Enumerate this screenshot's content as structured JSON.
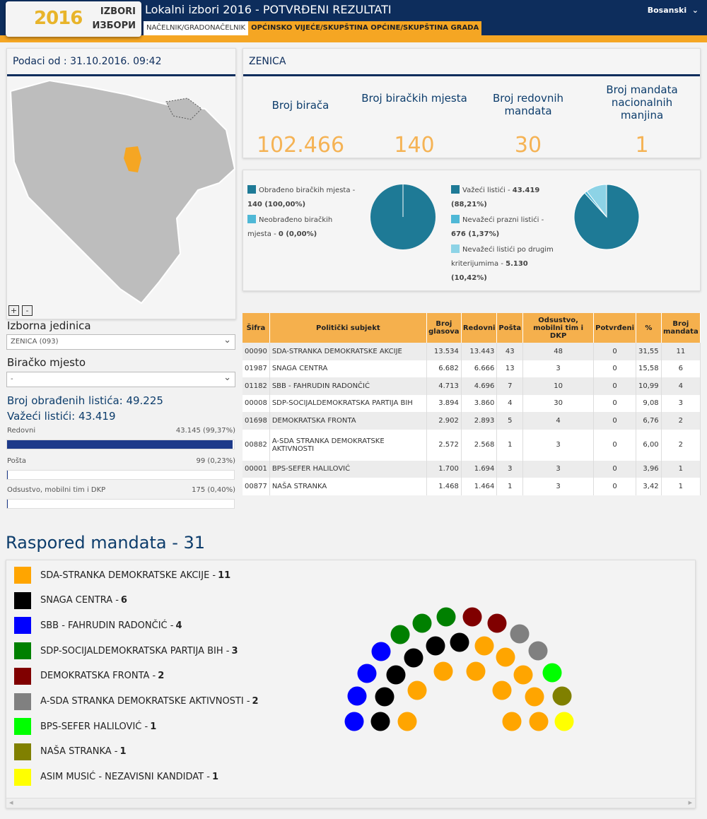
{
  "header": {
    "logo_top": "IZBORI",
    "logo_year": "2016",
    "logo_bottom": "ИЗБОРИ",
    "title": "Lokalni izbori 2016 - POTVRĐENI REZULTATI",
    "language": "Bosanski",
    "tabs": [
      "NAČELNIK/GRADONAČELNIK",
      "OPĆINSKO VIJEĆE/SKUPŠTINA OPĆINE/SKUPŠTINA GRADA"
    ]
  },
  "left": {
    "data_date": "Podaci od : 31.10.2016. 09:42",
    "zoom_in": "+",
    "zoom_out": "-",
    "unit_label": "Izborna jedinica",
    "unit_value": "ZENICA (093)",
    "place_label": "Biračko mjesto",
    "place_value": "-",
    "processed": "Broj obrađenih listića: 49.225",
    "valid": "Važeći listići: 43.419",
    "bars": [
      {
        "label": "Redovni",
        "value": "43.145 (99,37%)",
        "pct": 99.37
      },
      {
        "label": "Pošta",
        "value": "99 (0,23%)",
        "pct": 0.23
      },
      {
        "label": "Odsustvo, mobilni tim i DKP",
        "value": "175 (0,40%)",
        "pct": 0.4
      }
    ]
  },
  "summary": {
    "name": "ZENICA",
    "stats": [
      {
        "label": "Broj birača",
        "value": "102.466"
      },
      {
        "label": "Broj biračkih mjesta",
        "value": "140"
      },
      {
        "label": "Broj redovnih mandata",
        "value": "30"
      },
      {
        "label": "Broj mandata nacionalnih manjina",
        "value": "1"
      }
    ],
    "pie1": {
      "legend": [
        {
          "label": "Obrađeno biračkih mjesta - ",
          "value": "140 (100,00%)",
          "color": "#1e7a96",
          "pct": 100
        },
        {
          "label": "Neobrađeno biračkih mjesta - ",
          "value": "0 (0,00%)",
          "color": "#4fb8d6",
          "pct": 0
        }
      ]
    },
    "pie2": {
      "legend": [
        {
          "label": "Važeći listići - ",
          "value": "43.419 (88,21%)",
          "color": "#1e7a96",
          "pct": 88.21
        },
        {
          "label": "Nevažeći prazni listići - ",
          "value": "676 (1,37%)",
          "color": "#4fb8d6",
          "pct": 1.37
        },
        {
          "label": "Nevažeći listići po drugim kriterijumima - ",
          "value": "5.130 (10,42%)",
          "color": "#8dd3e6",
          "pct": 10.42
        }
      ]
    }
  },
  "table": {
    "headers": [
      "Šifra",
      "Politički subjekt",
      "Broj glasova",
      "Redovni",
      "Pošta",
      "Odsustvo, mobilni tim i DKP",
      "Potvrđeni",
      "%",
      "Broj mandata"
    ],
    "rows": [
      [
        "00090",
        "SDA-STRANKA DEMOKRATSKE AKCIJE",
        "13.534",
        "13.443",
        "43",
        "48",
        "0",
        "31,55",
        "11"
      ],
      [
        "01987",
        "SNAGA CENTRA",
        "6.682",
        "6.666",
        "13",
        "3",
        "0",
        "15,58",
        "6"
      ],
      [
        "01182",
        "SBB - FAHRUDIN RADONČIĆ",
        "4.713",
        "4.696",
        "7",
        "10",
        "0",
        "10,99",
        "4"
      ],
      [
        "00008",
        "SDP-SOCIJALDEMOKRATSKA PARTIJA BIH",
        "3.894",
        "3.860",
        "4",
        "30",
        "0",
        "9,08",
        "3"
      ],
      [
        "01698",
        "DEMOKRATSKA FRONTA",
        "2.902",
        "2.893",
        "5",
        "4",
        "0",
        "6,76",
        "2"
      ],
      [
        "00882",
        "A-SDA STRANKA DEMOKRATSKE AKTIVNOSTI",
        "2.572",
        "2.568",
        "1",
        "3",
        "0",
        "6,00",
        "2"
      ],
      [
        "00001",
        "BPS-SEFER HALILOVIĆ",
        "1.700",
        "1.694",
        "3",
        "3",
        "0",
        "3,96",
        "1"
      ],
      [
        "00877",
        "NAŠA STRANKA",
        "1.468",
        "1.464",
        "1",
        "3",
        "0",
        "3,42",
        "1"
      ]
    ]
  },
  "mandates": {
    "title": "Raspored mandata - 31",
    "parties": [
      {
        "name": "SDA-STRANKA DEMOKRATSKE AKCIJE - ",
        "seats": "11",
        "color": "#ffa500"
      },
      {
        "name": "SNAGA CENTRA - ",
        "seats": "6",
        "color": "#000000"
      },
      {
        "name": "SBB - FAHRUDIN RADONČIĆ - ",
        "seats": "4",
        "color": "#0000ff"
      },
      {
        "name": "SDP-SOCIJALDEMOKRATSKA PARTIJA BIH - ",
        "seats": "3",
        "color": "#008000"
      },
      {
        "name": "DEMOKRATSKA FRONTA - ",
        "seats": "2",
        "color": "#800000"
      },
      {
        "name": "A-SDA STRANKA DEMOKRATSKE AKTIVNOSTI - ",
        "seats": "2",
        "color": "#808080"
      },
      {
        "name": "BPS-SEFER HALILOVIĆ - ",
        "seats": "1",
        "color": "#00ff00"
      },
      {
        "name": "NAŠA STRANKA - ",
        "seats": "1",
        "color": "#808000"
      },
      {
        "name": "ASIM MUSIĆ - NEZAVISNI KANDIDAT - ",
        "seats": "1",
        "color": "#ffff00"
      }
    ],
    "seat_party": [
      2,
      2,
      2,
      2,
      3,
      3,
      3,
      4,
      4,
      5,
      5,
      6,
      7,
      8,
      1,
      1,
      1,
      1,
      1,
      1,
      0,
      0,
      0,
      0,
      0,
      0,
      0,
      0,
      0,
      0,
      0
    ]
  }
}
